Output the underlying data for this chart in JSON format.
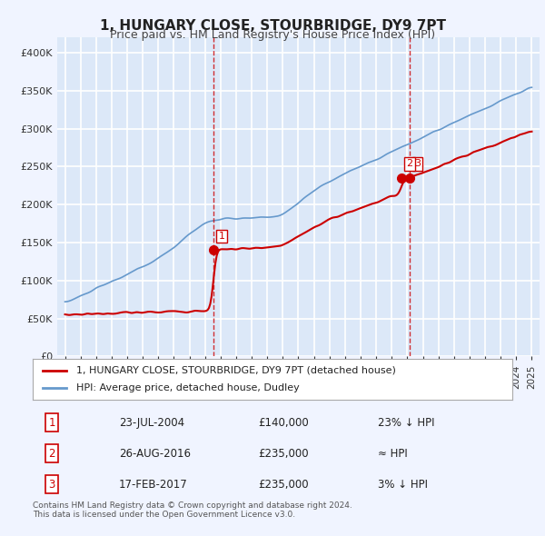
{
  "title": "1, HUNGARY CLOSE, STOURBRIDGE, DY9 7PT",
  "subtitle": "Price paid vs. HM Land Registry's House Price Index (HPI)",
  "bg_color": "#f0f4ff",
  "plot_bg": "#dce8f8",
  "grid_color": "#ffffff",
  "red_color": "#cc0000",
  "blue_color": "#6699cc",
  "ylabel_color": "#333333",
  "transaction1": {
    "date": "23-JUL-2004",
    "price": 140000,
    "label": "1",
    "x": 2004.56
  },
  "transaction2": {
    "date": "26-AUG-2016",
    "price": 235000,
    "label": "2",
    "x": 2016.65
  },
  "transaction3": {
    "date": "17-FEB-2017",
    "price": 235000,
    "label": "3",
    "x": 2017.13
  },
  "legend_entry1": "1, HUNGARY CLOSE, STOURBRIDGE, DY9 7PT (detached house)",
  "legend_entry2": "HPI: Average price, detached house, Dudley",
  "table_rows": [
    {
      "num": "1",
      "date": "23-JUL-2004",
      "price": "£140,000",
      "hpi": "23% ↓ HPI"
    },
    {
      "num": "2",
      "date": "26-AUG-2016",
      "price": "£235,000",
      "hpi": "≈ HPI"
    },
    {
      "num": "3",
      "date": "17-FEB-2017",
      "price": "£235,000",
      "hpi": "3% ↓ HPI"
    }
  ],
  "footer": "Contains HM Land Registry data © Crown copyright and database right 2024.\nThis data is licensed under the Open Government Licence v3.0.",
  "xlim": [
    1994.5,
    2025.5
  ],
  "ylim": [
    0,
    420000
  ]
}
